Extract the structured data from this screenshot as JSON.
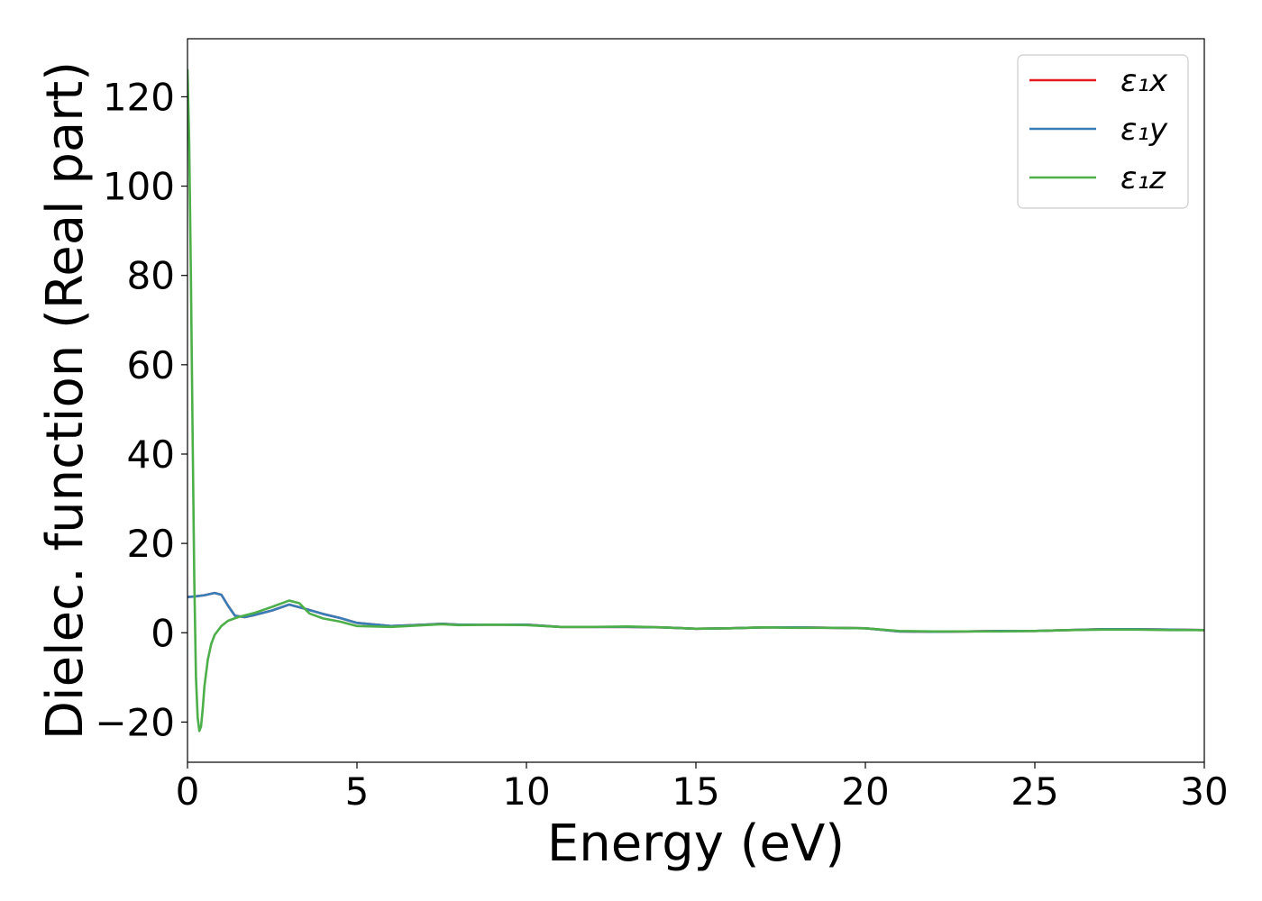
{
  "chart_data": {
    "type": "line",
    "title": "",
    "xlabel": "Energy (eV)",
    "ylabel": "Dielec. function (Real part)",
    "xlim": [
      0,
      30
    ],
    "ylim": [
      -29,
      133
    ],
    "xticks": [
      0,
      5,
      10,
      15,
      20,
      25,
      30
    ],
    "xtick_labels": [
      "0",
      "5",
      "10",
      "15",
      "20",
      "25",
      "30"
    ],
    "yticks": [
      -20,
      0,
      20,
      40,
      60,
      80,
      100,
      120
    ],
    "ytick_labels": [
      "−20",
      "0",
      "20",
      "40",
      "60",
      "80",
      "100",
      "120"
    ],
    "grid": false,
    "legend_position": "top-right",
    "series": [
      {
        "name": "ε₁x",
        "color": "#e41a1c",
        "x": [
          0,
          0.2,
          0.5,
          0.8,
          1.0,
          1.2,
          1.4,
          1.7,
          2.0,
          2.5,
          3.0,
          3.5,
          4.0,
          4.5,
          5.0,
          6.0,
          7.0,
          7.5,
          8.0,
          9.0,
          10.0,
          11.0,
          12.0,
          13.0,
          14.0,
          15.0,
          16.0,
          17.0,
          18.0,
          19.0,
          20.0,
          21.0,
          22.0,
          23.0,
          24.0,
          25.0,
          26.0,
          27.0,
          28.0,
          29.0,
          30.0
        ],
        "y": [
          8.0,
          8.1,
          8.4,
          8.9,
          8.5,
          6.0,
          3.8,
          3.5,
          4.0,
          5.0,
          6.3,
          5.3,
          4.2,
          3.3,
          2.2,
          1.5,
          1.8,
          2.0,
          1.8,
          1.8,
          1.8,
          1.3,
          1.3,
          1.3,
          1.2,
          0.9,
          1.0,
          1.2,
          1.2,
          1.1,
          1.0,
          0.3,
          0.2,
          0.3,
          0.4,
          0.4,
          0.6,
          0.8,
          0.8,
          0.7,
          0.6
        ]
      },
      {
        "name": "ε₁y",
        "color": "#377eb8",
        "x": [
          0,
          0.2,
          0.5,
          0.8,
          1.0,
          1.2,
          1.4,
          1.7,
          2.0,
          2.5,
          3.0,
          3.5,
          4.0,
          4.5,
          5.0,
          6.0,
          7.0,
          7.5,
          8.0,
          9.0,
          10.0,
          11.0,
          12.0,
          13.0,
          14.0,
          15.0,
          16.0,
          17.0,
          18.0,
          19.0,
          20.0,
          21.0,
          22.0,
          23.0,
          24.0,
          25.0,
          26.0,
          27.0,
          28.0,
          29.0,
          30.0
        ],
        "y": [
          8.0,
          8.1,
          8.4,
          8.9,
          8.5,
          6.0,
          3.8,
          3.5,
          4.0,
          5.0,
          6.3,
          5.3,
          4.2,
          3.3,
          2.2,
          1.5,
          1.8,
          2.0,
          1.8,
          1.8,
          1.8,
          1.3,
          1.3,
          1.3,
          1.2,
          0.9,
          1.0,
          1.2,
          1.2,
          1.1,
          1.0,
          0.3,
          0.2,
          0.3,
          0.4,
          0.4,
          0.6,
          0.8,
          0.8,
          0.7,
          0.6
        ]
      },
      {
        "name": "ε₁z",
        "color": "#4daf4a",
        "x": [
          0,
          0.05,
          0.1,
          0.15,
          0.2,
          0.25,
          0.3,
          0.35,
          0.4,
          0.45,
          0.5,
          0.6,
          0.7,
          0.8,
          1.0,
          1.2,
          1.5,
          2.0,
          2.5,
          3.0,
          3.3,
          3.6,
          4.0,
          4.5,
          5.0,
          6.0,
          7.0,
          7.5,
          8.0,
          9.0,
          10.0,
          11.0,
          12.0,
          13.0,
          14.0,
          15.0,
          16.0,
          17.0,
          18.0,
          19.0,
          20.0,
          21.0,
          22.0,
          23.0,
          24.0,
          25.0,
          26.0,
          27.0,
          28.0,
          29.0,
          30.0
        ],
        "y": [
          126,
          110,
          80,
          45,
          12,
          -10,
          -19,
          -22,
          -21,
          -17,
          -12,
          -6,
          -2.5,
          -0.5,
          1.5,
          2.7,
          3.5,
          4.5,
          5.8,
          7.2,
          6.6,
          4.3,
          3.2,
          2.5,
          1.5,
          1.3,
          1.7,
          1.9,
          1.7,
          1.8,
          1.7,
          1.3,
          1.3,
          1.4,
          1.2,
          0.9,
          1.0,
          1.2,
          1.1,
          1.1,
          1.0,
          0.4,
          0.3,
          0.3,
          0.3,
          0.4,
          0.6,
          0.7,
          0.7,
          0.6,
          0.6
        ]
      }
    ]
  }
}
